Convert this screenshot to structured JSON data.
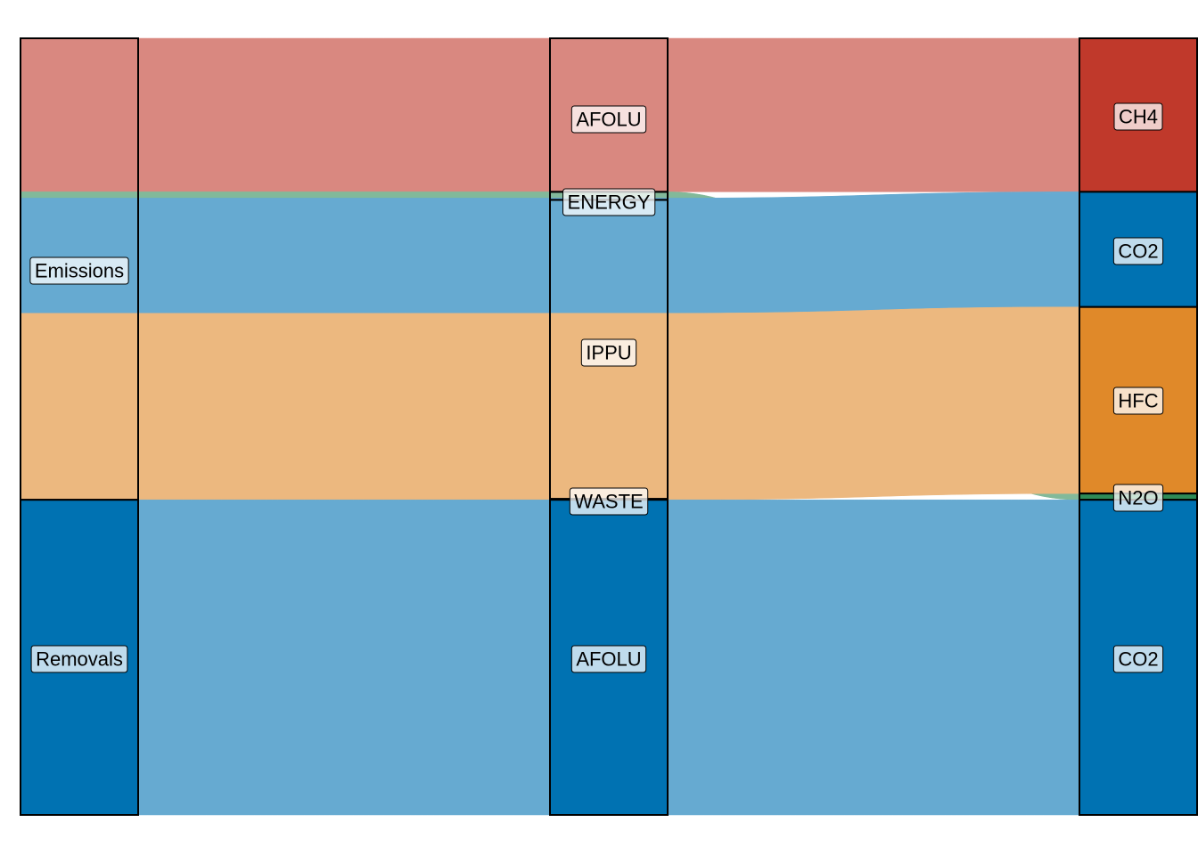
{
  "chart_data": {
    "type": "alluvial",
    "title": "",
    "colors": {
      "CH4": "#c0392b",
      "CO2": "#0072b2",
      "HFC": "#e08929",
      "N2O": "#2e8b57"
    },
    "axes": [
      {
        "nodes": [
          "Emissions",
          "Removals"
        ]
      },
      {
        "nodes": [
          "AFOLU",
          "ENERGY",
          "IPPU",
          "WASTE",
          "AFOLU"
        ]
      },
      {
        "nodes": [
          "CH4",
          "CO2",
          "HFC",
          "N2O",
          "CO2"
        ]
      }
    ],
    "flows": [
      {
        "stratum1": "Emissions",
        "stratum2": "AFOLU",
        "stratum3": "CH4",
        "gas": "CH4",
        "value": 172
      },
      {
        "stratum1": "Emissions",
        "stratum2": "ENERGY",
        "stratum3": "N2O",
        "gas": "N2O",
        "value": 7
      },
      {
        "stratum1": "Emissions",
        "stratum2": "ENERGY",
        "stratum3": "CO2",
        "gas": "CO2",
        "value": 2
      },
      {
        "stratum1": "Emissions",
        "stratum2": "IPPU",
        "stratum3": "CO2",
        "gas": "CO2",
        "value": 127
      },
      {
        "stratum1": "Emissions",
        "stratum2": "IPPU",
        "stratum3": "HFC",
        "gas": "HFC",
        "value": 208
      },
      {
        "stratum1": "Emissions",
        "stratum2": "WASTE",
        "stratum3": "HFC",
        "gas": "HFC",
        "value": 1
      },
      {
        "stratum1": "Removals",
        "stratum2": "AFOLU",
        "stratum3": "CO2",
        "gas": "CO2",
        "value": 353
      }
    ]
  },
  "labels": {
    "axis1": [
      "Emissions",
      "Removals"
    ],
    "axis2": [
      "AFOLU",
      "ENERGY",
      "IPPU",
      "WASTE",
      "AFOLU"
    ],
    "axis3": [
      "CH4",
      "CO2",
      "HFC",
      "N2O",
      "CO2"
    ]
  }
}
